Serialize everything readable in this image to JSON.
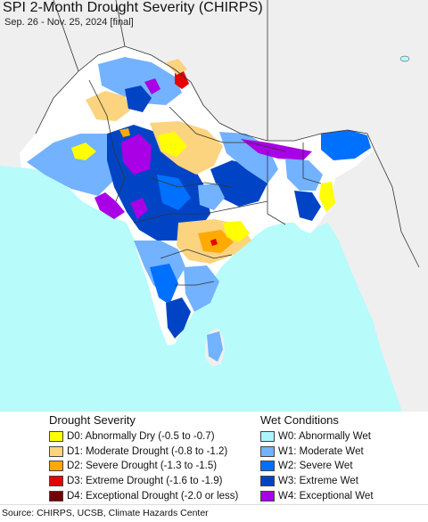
{
  "header": {
    "title": "SPI 2-Month Drought Severity (CHIRPS)",
    "subtitle": "Sep. 26 - Nov. 25, 2024 [final]"
  },
  "map": {
    "ocean_color": "#b7fbfb",
    "land_color": "#efefef",
    "border_color": "#333333",
    "inland_water_color": "#b7fbfb"
  },
  "legend": {
    "drought": {
      "title": "Drought Severity",
      "items": [
        {
          "label": "D0: Abnormally Dry (-0.5 to -0.7)",
          "color": "#ffff00"
        },
        {
          "label": "D1: Moderate Drought (-0.8 to -1.2)",
          "color": "#fcd37f"
        },
        {
          "label": "D2: Severe Drought (-1.3 to -1.5)",
          "color": "#ffaa00"
        },
        {
          "label": "D3: Extreme Drought (-1.6 to -1.9)",
          "color": "#e60000"
        },
        {
          "label": "D4: Exceptional Drought (-2.0 or less)",
          "color": "#730000"
        }
      ]
    },
    "wet": {
      "title": "Wet Conditions",
      "items": [
        {
          "label": "W0: Abnormally Wet",
          "color": "#aaf5ff"
        },
        {
          "label": "W1: Moderate Wet",
          "color": "#73b2ff"
        },
        {
          "label": "W2: Severe Wet",
          "color": "#0070ff"
        },
        {
          "label": "W3: Extreme Wet",
          "color": "#0044c5"
        },
        {
          "label": "W4: Exceptional Wet",
          "color": "#a900e6"
        }
      ]
    }
  },
  "footer": {
    "source": "Source: CHIRPS, UCSB, Climate Hazards Center"
  }
}
